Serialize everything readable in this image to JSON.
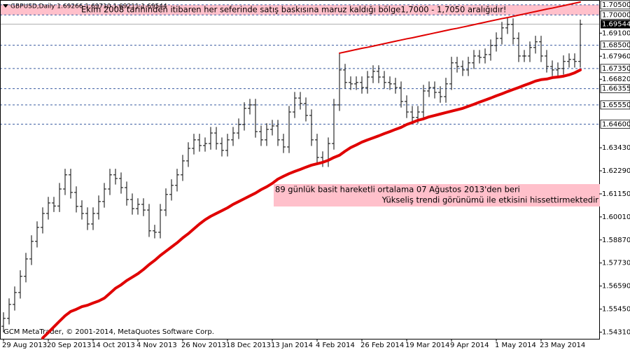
{
  "chart_data": {
    "type": "ohlc",
    "title": "GBPUSD,Daily  1.69266 1.69710 1.69211 1.69544",
    "footer": "GCM MetaTrader, © 2001-2014, MetaQuotes Software Corp.",
    "categories": [
      "29 Aug 2013",
      null,
      null,
      null,
      null,
      null,
      null,
      null,
      "20 Sep 2013",
      null,
      null,
      null,
      null,
      null,
      null,
      null,
      "14 Oct 2013",
      null,
      null,
      null,
      null,
      null,
      null,
      null,
      "4 Nov 2013",
      null,
      null,
      null,
      null,
      null,
      null,
      null,
      "26 Nov 2013",
      null,
      null,
      null,
      null,
      null,
      null,
      null,
      "18 Dec 2013",
      null,
      null,
      null,
      null,
      null,
      null,
      null,
      "13 Jan 2014",
      null,
      null,
      null,
      null,
      null,
      null,
      null,
      "4 Feb 2014",
      null,
      null,
      null,
      null,
      null,
      null,
      null,
      "26 Feb 2014",
      null,
      null,
      null,
      null,
      null,
      null,
      null,
      "19 Mar 2014",
      null,
      null,
      null,
      null,
      null,
      null,
      null,
      "9 Apr 2014",
      null,
      null,
      null,
      null,
      null,
      null,
      null,
      "1 May 2014",
      null,
      null,
      null,
      null,
      null,
      null,
      null,
      "23 May 2014",
      null,
      null,
      null,
      null,
      null,
      null,
      null
    ],
    "ohlc": {
      "color": "#000000",
      "open": [
        1.546,
        1.5499,
        1.5568,
        1.5627,
        1.5707,
        1.5793,
        1.588,
        1.5949,
        1.6018,
        1.607,
        1.6055,
        1.6139,
        1.6209,
        1.6122,
        1.6053,
        1.6018,
        1.5966,
        1.6018,
        1.6077,
        1.6139,
        1.6209,
        1.6191,
        1.6146,
        1.6087,
        1.6042,
        1.6063,
        1.6035,
        1.5932,
        1.5925,
        1.6035,
        1.6112,
        1.6157,
        1.6209,
        1.6278,
        1.634,
        1.6382,
        1.6354,
        1.6364,
        1.6416,
        1.6364,
        1.633,
        1.6382,
        1.6416,
        1.6458,
        1.6538,
        1.6555,
        1.6423,
        1.6382,
        1.6434,
        1.6451,
        1.6382,
        1.6347,
        1.652,
        1.6589,
        1.6562,
        1.6503,
        1.6382,
        1.6295,
        1.6278,
        1.6364,
        1.6555,
        1.6728,
        1.6666,
        1.6659,
        1.6666,
        1.6641,
        1.6693,
        1.6721,
        1.6693,
        1.6666,
        1.6659,
        1.6641,
        1.6572,
        1.652,
        1.6493,
        1.652,
        1.6624,
        1.6641,
        1.6617,
        1.6596,
        1.6659,
        1.6763,
        1.6745,
        1.6728,
        1.6763,
        1.6797,
        1.679,
        1.6804,
        1.6849,
        1.6884,
        1.6936,
        1.6953,
        1.6884,
        1.6797,
        1.6797,
        1.6839,
        1.6867,
        1.6797,
        1.6745,
        1.6728,
        1.6735,
        1.677,
        1.678,
        1.677
      ],
      "high": [
        1.5529,
        1.5598,
        1.5657,
        1.5737,
        1.5823,
        1.591,
        1.5979,
        1.6048,
        1.61,
        1.61,
        1.6169,
        1.6239,
        1.6239,
        1.6152,
        1.6083,
        1.6048,
        1.6048,
        1.6107,
        1.6169,
        1.6239,
        1.6239,
        1.6221,
        1.6176,
        1.6117,
        1.6093,
        1.6093,
        1.6065,
        1.5962,
        1.6065,
        1.6142,
        1.6187,
        1.6239,
        1.6308,
        1.637,
        1.6412,
        1.6412,
        1.6394,
        1.6446,
        1.6446,
        1.6394,
        1.6412,
        1.6446,
        1.6488,
        1.6568,
        1.6585,
        1.6585,
        1.6453,
        1.6464,
        1.6481,
        1.6481,
        1.6412,
        1.655,
        1.6619,
        1.6619,
        1.6592,
        1.6533,
        1.6412,
        1.6325,
        1.6394,
        1.6585,
        1.6811,
        1.6758,
        1.6696,
        1.6696,
        1.6696,
        1.6723,
        1.6751,
        1.6751,
        1.6723,
        1.6696,
        1.6689,
        1.6671,
        1.6602,
        1.655,
        1.655,
        1.6654,
        1.6671,
        1.6671,
        1.6647,
        1.6689,
        1.6793,
        1.6793,
        1.6775,
        1.6793,
        1.6827,
        1.6827,
        1.6834,
        1.6879,
        1.6914,
        1.6966,
        1.6987,
        1.6983,
        1.6914,
        1.6827,
        1.6869,
        1.6897,
        1.6897,
        1.6827,
        1.6775,
        1.6765,
        1.68,
        1.681,
        1.681,
        1.6977
      ],
      "low": [
        1.543,
        1.5469,
        1.5538,
        1.5597,
        1.5677,
        1.5763,
        1.585,
        1.5919,
        1.5988,
        1.6025,
        1.6025,
        1.6109,
        1.6092,
        1.6023,
        1.5988,
        1.5936,
        1.5936,
        1.5988,
        1.6047,
        1.6109,
        1.6161,
        1.6116,
        1.6057,
        1.6012,
        1.6012,
        1.6005,
        1.5902,
        1.5895,
        1.5895,
        1.6005,
        1.6082,
        1.6127,
        1.6179,
        1.6248,
        1.631,
        1.6324,
        1.6324,
        1.6334,
        1.6334,
        1.63,
        1.63,
        1.6352,
        1.6386,
        1.6428,
        1.6508,
        1.6393,
        1.6352,
        1.6352,
        1.6404,
        1.6352,
        1.6317,
        1.6317,
        1.649,
        1.6532,
        1.6473,
        1.6352,
        1.6265,
        1.6248,
        1.6248,
        1.6334,
        1.6525,
        1.6636,
        1.6629,
        1.6629,
        1.6611,
        1.6611,
        1.6663,
        1.6663,
        1.6636,
        1.6629,
        1.6611,
        1.6542,
        1.649,
        1.6463,
        1.6463,
        1.649,
        1.6594,
        1.6587,
        1.6566,
        1.6566,
        1.6629,
        1.6715,
        1.6698,
        1.6698,
        1.6733,
        1.676,
        1.676,
        1.6774,
        1.6819,
        1.6854,
        1.6906,
        1.6854,
        1.6767,
        1.6767,
        1.6767,
        1.6809,
        1.6767,
        1.6715,
        1.6698,
        1.6698,
        1.6705,
        1.674,
        1.674,
        1.674
      ],
      "close": [
        1.5499,
        1.5568,
        1.5627,
        1.5707,
        1.5793,
        1.588,
        1.5949,
        1.6018,
        1.607,
        1.6055,
        1.6139,
        1.6209,
        1.6122,
        1.6053,
        1.6018,
        1.5966,
        1.6018,
        1.6077,
        1.6139,
        1.6209,
        1.6191,
        1.6146,
        1.6087,
        1.6042,
        1.6063,
        1.6035,
        1.5932,
        1.5925,
        1.6035,
        1.6112,
        1.6157,
        1.6209,
        1.6278,
        1.634,
        1.6382,
        1.6354,
        1.6364,
        1.6416,
        1.6364,
        1.633,
        1.6382,
        1.6416,
        1.6458,
        1.6538,
        1.6555,
        1.6423,
        1.6382,
        1.6434,
        1.6451,
        1.6382,
        1.6347,
        1.652,
        1.6589,
        1.6562,
        1.6503,
        1.6382,
        1.6295,
        1.6278,
        1.6364,
        1.6555,
        1.6728,
        1.6666,
        1.6659,
        1.6666,
        1.6641,
        1.6693,
        1.6721,
        1.6693,
        1.6666,
        1.6659,
        1.6641,
        1.6572,
        1.652,
        1.6493,
        1.652,
        1.6624,
        1.6641,
        1.6617,
        1.6596,
        1.6659,
        1.6763,
        1.6745,
        1.6728,
        1.6763,
        1.6797,
        1.679,
        1.6804,
        1.6849,
        1.6884,
        1.6936,
        1.6953,
        1.6884,
        1.6797,
        1.6797,
        1.6839,
        1.6867,
        1.6797,
        1.6745,
        1.6728,
        1.6735,
        1.677,
        1.678,
        1.677,
        1.69544
      ]
    },
    "moving_average": {
      "color": "#e00000",
      "values": [
        null,
        null,
        null,
        null,
        null,
        null,
        null,
        1.5402,
        1.5429,
        1.5457,
        1.5485,
        1.5512,
        1.5533,
        1.5544,
        1.5557,
        1.5564,
        1.5575,
        1.5585,
        1.5599,
        1.5623,
        1.5648,
        1.5665,
        1.5686,
        1.5703,
        1.572,
        1.5741,
        1.5765,
        1.5786,
        1.581,
        1.5831,
        1.5852,
        1.5873,
        1.5897,
        1.5918,
        1.5942,
        1.5966,
        1.5987,
        1.6004,
        1.6018,
        1.6032,
        1.6046,
        1.6063,
        1.6077,
        1.6091,
        1.6105,
        1.6119,
        1.6136,
        1.615,
        1.6167,
        1.6188,
        1.6202,
        1.6215,
        1.6226,
        1.6236,
        1.6247,
        1.6257,
        1.6264,
        1.6271,
        1.6281,
        1.6295,
        1.6306,
        1.6326,
        1.6344,
        1.6357,
        1.6371,
        1.6382,
        1.6392,
        1.6402,
        1.6413,
        1.6423,
        1.6434,
        1.6444,
        1.6458,
        1.6468,
        1.6479,
        1.6486,
        1.6496,
        1.6503,
        1.651,
        1.6517,
        1.6524,
        1.6531,
        1.6538,
        1.6548,
        1.6558,
        1.6569,
        1.6579,
        1.6589,
        1.66,
        1.661,
        1.6621,
        1.6631,
        1.6641,
        1.6652,
        1.6662,
        1.6673,
        1.668,
        1.6683,
        1.669,
        1.6693,
        1.6697,
        1.6704,
        1.6714,
        1.6728
      ]
    },
    "trendline": {
      "color": "#e00000",
      "values": [
        null,
        null,
        null,
        null,
        null,
        null,
        null,
        null,
        null,
        null,
        null,
        null,
        null,
        null,
        null,
        null,
        null,
        null,
        null,
        null,
        null,
        null,
        null,
        null,
        null,
        null,
        null,
        null,
        null,
        null,
        null,
        null,
        null,
        null,
        null,
        null,
        null,
        null,
        null,
        null,
        null,
        null,
        null,
        null,
        null,
        null,
        null,
        null,
        null,
        null,
        null,
        null,
        null,
        null,
        null,
        null,
        null,
        null,
        null,
        null,
        1.6811,
        1.6817,
        1.6823,
        1.6829,
        1.6835,
        1.684,
        1.6846,
        1.6852,
        1.6858,
        1.6864,
        1.687,
        1.6876,
        1.6882,
        1.6887,
        1.6893,
        1.6899,
        1.6905,
        1.6911,
        1.6917,
        1.6923,
        1.6929,
        1.6934,
        1.694,
        1.6946,
        1.6952,
        1.6958,
        1.6964,
        1.697,
        1.6976,
        1.6982,
        1.6987,
        1.6993,
        1.6999,
        1.7005,
        1.7011,
        1.7017,
        1.7023,
        1.7029,
        1.7034,
        1.704,
        1.7046,
        1.7052,
        1.7058,
        1.7064
      ]
    },
    "ylim": [
      1.5398,
      1.7074
    ],
    "yticks": [
      {
        "value": 1.691,
        "label": "1.69100"
      },
      {
        "value": 1.6796,
        "label": "1.67960"
      },
      {
        "value": 1.6682,
        "label": "1.66820"
      },
      {
        "value": 1.6343,
        "label": "1.63430"
      },
      {
        "value": 1.6229,
        "label": "1.62290"
      },
      {
        "value": 1.6115,
        "label": "1.61150"
      },
      {
        "value": 1.6001,
        "label": "1.60010"
      },
      {
        "value": 1.5887,
        "label": "1.58870"
      },
      {
        "value": 1.5773,
        "label": "1.57730"
      },
      {
        "value": 1.5659,
        "label": "1.56590"
      },
      {
        "value": 1.5545,
        "label": "1.55450"
      },
      {
        "value": 1.5431,
        "label": "1.54310"
      }
    ],
    "levels": [
      {
        "value": 1.705,
        "label": "1.70500"
      },
      {
        "value": 1.7,
        "label": "1.70000"
      },
      {
        "value": 1.685,
        "label": "1.68500"
      },
      {
        "value": 1.6735,
        "label": "1.67350"
      },
      {
        "value": 1.66355,
        "label": "1.66355"
      },
      {
        "value": 1.6555,
        "label": "1.65550"
      },
      {
        "value": 1.646,
        "label": "1.64600"
      }
    ],
    "level_color": "#3a5ba0",
    "zone_color": "#ffc0cb",
    "last_price": {
      "value": 1.69544,
      "label": "1.69544"
    },
    "annotations": [
      "Ekim 2008 tarihinden itibaren her seferinde satış baskısına maruz kaldığı bölge1,7000 - 1,7050 aralığıdır!",
      "89 günlük basit hareketli ortalama 07 Ağustos 2013'den beri",
      "Yükseliş trendi görünümü ile etkisini hissettirmektedir"
    ]
  }
}
